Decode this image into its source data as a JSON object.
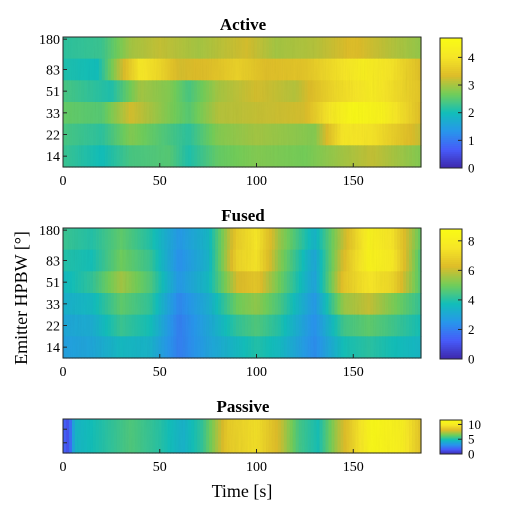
{
  "chart_data": [
    {
      "type": "heatmap",
      "title": "Active",
      "ylabel": "",
      "xlabel": "",
      "xlim": [
        0,
        185
      ],
      "x_ticks": [
        "0",
        "50",
        "100",
        "150"
      ],
      "y_tick_labels": [
        "14",
        "22",
        "33",
        "51",
        "83",
        "180"
      ],
      "colorbar": {
        "min": 0,
        "max": 4.7,
        "ticks": [
          "0",
          "1",
          "2",
          "3",
          "4"
        ]
      },
      "rows": [
        {
          "y": "180",
          "profile": [
            [
              0,
              2.2
            ],
            [
              20,
              2.3
            ],
            [
              35,
              3.0
            ],
            [
              50,
              3.2
            ],
            [
              70,
              3.0
            ],
            [
              95,
              3.3
            ],
            [
              110,
              3.0
            ],
            [
              130,
              3.1
            ],
            [
              150,
              3.4
            ],
            [
              170,
              3.1
            ],
            [
              185,
              2.9
            ]
          ]
        },
        {
          "y": "83",
          "profile": [
            [
              0,
              2.1
            ],
            [
              18,
              2.0
            ],
            [
              30,
              3.2
            ],
            [
              40,
              4.1
            ],
            [
              50,
              3.8
            ],
            [
              60,
              3.3
            ],
            [
              75,
              3.4
            ],
            [
              90,
              3.7
            ],
            [
              105,
              3.4
            ],
            [
              125,
              3.5
            ],
            [
              140,
              3.9
            ],
            [
              155,
              4.3
            ],
            [
              170,
              4.0
            ],
            [
              185,
              3.4
            ]
          ]
        },
        {
          "y": "51",
          "profile": [
            [
              0,
              2.4
            ],
            [
              25,
              2.1
            ],
            [
              40,
              3.0
            ],
            [
              55,
              2.8
            ],
            [
              65,
              2.4
            ],
            [
              80,
              3.0
            ],
            [
              100,
              3.3
            ],
            [
              120,
              3.1
            ],
            [
              140,
              3.8
            ],
            [
              160,
              4.2
            ],
            [
              185,
              3.5
            ]
          ]
        },
        {
          "y": "33",
          "profile": [
            [
              0,
              2.6
            ],
            [
              20,
              2.5
            ],
            [
              35,
              3.3
            ],
            [
              50,
              2.9
            ],
            [
              65,
              2.5
            ],
            [
              80,
              3.1
            ],
            [
              100,
              3.2
            ],
            [
              125,
              3.3
            ],
            [
              140,
              4.2
            ],
            [
              150,
              4.6
            ],
            [
              165,
              4.4
            ],
            [
              185,
              3.4
            ]
          ]
        },
        {
          "y": "22",
          "profile": [
            [
              0,
              2.4
            ],
            [
              20,
              2.2
            ],
            [
              35,
              2.8
            ],
            [
              50,
              2.5
            ],
            [
              65,
              2.2
            ],
            [
              80,
              2.8
            ],
            [
              100,
              3.0
            ],
            [
              130,
              2.8
            ],
            [
              145,
              4.1
            ],
            [
              160,
              4.0
            ],
            [
              185,
              3.2
            ]
          ]
        },
        {
          "y": "14",
          "profile": [
            [
              0,
              2.3
            ],
            [
              20,
              2.0
            ],
            [
              35,
              2.4
            ],
            [
              55,
              2.5
            ],
            [
              65,
              2.1
            ],
            [
              80,
              2.6
            ],
            [
              100,
              2.8
            ],
            [
              125,
              2.7
            ],
            [
              145,
              3.0
            ],
            [
              160,
              3.2
            ],
            [
              185,
              2.8
            ]
          ]
        }
      ]
    },
    {
      "type": "heatmap",
      "title": "Fused",
      "ylabel": "Emitter HPBW [°]",
      "xlabel": "",
      "xlim": [
        0,
        185
      ],
      "x_ticks": [
        "0",
        "50",
        "100",
        "150"
      ],
      "y_tick_labels": [
        "14",
        "22",
        "33",
        "51",
        "83",
        "180"
      ],
      "colorbar": {
        "min": 0,
        "max": 8.8,
        "ticks": [
          "0",
          "2",
          "4",
          "6",
          "8"
        ]
      },
      "rows": [
        {
          "y": "180",
          "profile": [
            [
              0,
              4.3
            ],
            [
              15,
              4.0
            ],
            [
              30,
              4.8
            ],
            [
              45,
              4.0
            ],
            [
              60,
              2.6
            ],
            [
              75,
              3.5
            ],
            [
              90,
              6.8
            ],
            [
              100,
              7.6
            ],
            [
              112,
              5.5
            ],
            [
              130,
              3.4
            ],
            [
              145,
              6.0
            ],
            [
              158,
              8.2
            ],
            [
              170,
              7.5
            ],
            [
              185,
              4.8
            ]
          ]
        },
        {
          "y": "83",
          "profile": [
            [
              0,
              4.0
            ],
            [
              15,
              3.8
            ],
            [
              30,
              5.0
            ],
            [
              45,
              4.3
            ],
            [
              60,
              2.4
            ],
            [
              75,
              3.4
            ],
            [
              90,
              7.0
            ],
            [
              100,
              7.5
            ],
            [
              112,
              5.3
            ],
            [
              130,
              3.0
            ],
            [
              145,
              6.3
            ],
            [
              158,
              8.3
            ],
            [
              170,
              7.8
            ],
            [
              185,
              4.5
            ]
          ]
        },
        {
          "y": "51",
          "profile": [
            [
              0,
              3.6
            ],
            [
              15,
              4.2
            ],
            [
              30,
              5.6
            ],
            [
              45,
              4.6
            ],
            [
              60,
              2.6
            ],
            [
              75,
              3.6
            ],
            [
              90,
              6.2
            ],
            [
              100,
              6.6
            ],
            [
              112,
              5.0
            ],
            [
              130,
              2.9
            ],
            [
              145,
              6.6
            ],
            [
              158,
              7.6
            ],
            [
              170,
              7.1
            ],
            [
              185,
              4.6
            ]
          ]
        },
        {
          "y": "33",
          "profile": [
            [
              0,
              3.3
            ],
            [
              15,
              3.6
            ],
            [
              30,
              4.8
            ],
            [
              45,
              4.2
            ],
            [
              60,
              2.2
            ],
            [
              75,
              3.2
            ],
            [
              90,
              5.0
            ],
            [
              100,
              5.4
            ],
            [
              112,
              4.5
            ],
            [
              130,
              2.6
            ],
            [
              145,
              5.5
            ],
            [
              158,
              6.0
            ],
            [
              170,
              5.2
            ],
            [
              185,
              4.2
            ]
          ]
        },
        {
          "y": "22",
          "profile": [
            [
              0,
              3.0
            ],
            [
              15,
              3.2
            ],
            [
              30,
              4.3
            ],
            [
              45,
              3.8
            ],
            [
              60,
              2.0
            ],
            [
              75,
              3.0
            ],
            [
              90,
              4.2
            ],
            [
              100,
              4.6
            ],
            [
              112,
              4.0
            ],
            [
              130,
              2.4
            ],
            [
              145,
              4.4
            ],
            [
              158,
              4.8
            ],
            [
              170,
              4.4
            ],
            [
              185,
              3.8
            ]
          ]
        },
        {
          "y": "14",
          "profile": [
            [
              0,
              2.8
            ],
            [
              15,
              3.0
            ],
            [
              30,
              3.6
            ],
            [
              45,
              3.4
            ],
            [
              60,
              2.0
            ],
            [
              75,
              2.9
            ],
            [
              90,
              3.6
            ],
            [
              100,
              4.0
            ],
            [
              112,
              3.6
            ],
            [
              130,
              2.3
            ],
            [
              145,
              3.8
            ],
            [
              158,
              4.1
            ],
            [
              170,
              3.8
            ],
            [
              185,
              3.5
            ]
          ]
        }
      ]
    },
    {
      "type": "heatmap",
      "title": "Passive",
      "ylabel": "",
      "xlabel": "Time [s]",
      "xlim": [
        0,
        185
      ],
      "x_ticks": [
        "0",
        "50",
        "100",
        "150"
      ],
      "y_tick_labels": [],
      "colorbar": {
        "min": 0,
        "max": 11.5,
        "ticks": [
          "0",
          "5",
          "10"
        ]
      },
      "rows": [
        {
          "y": "",
          "profile": [
            [
              0,
              2.0
            ],
            [
              3,
              1.2
            ],
            [
              6,
              4.5
            ],
            [
              20,
              5.2
            ],
            [
              35,
              6.0
            ],
            [
              50,
              5.3
            ],
            [
              62,
              4.4
            ],
            [
              72,
              5.5
            ],
            [
              85,
              8.8
            ],
            [
              100,
              9.6
            ],
            [
              112,
              8.0
            ],
            [
              122,
              5.8
            ],
            [
              132,
              5.0
            ],
            [
              142,
              7.5
            ],
            [
              160,
              11.2
            ],
            [
              175,
              10.5
            ],
            [
              185,
              8.5
            ]
          ]
        }
      ]
    }
  ]
}
